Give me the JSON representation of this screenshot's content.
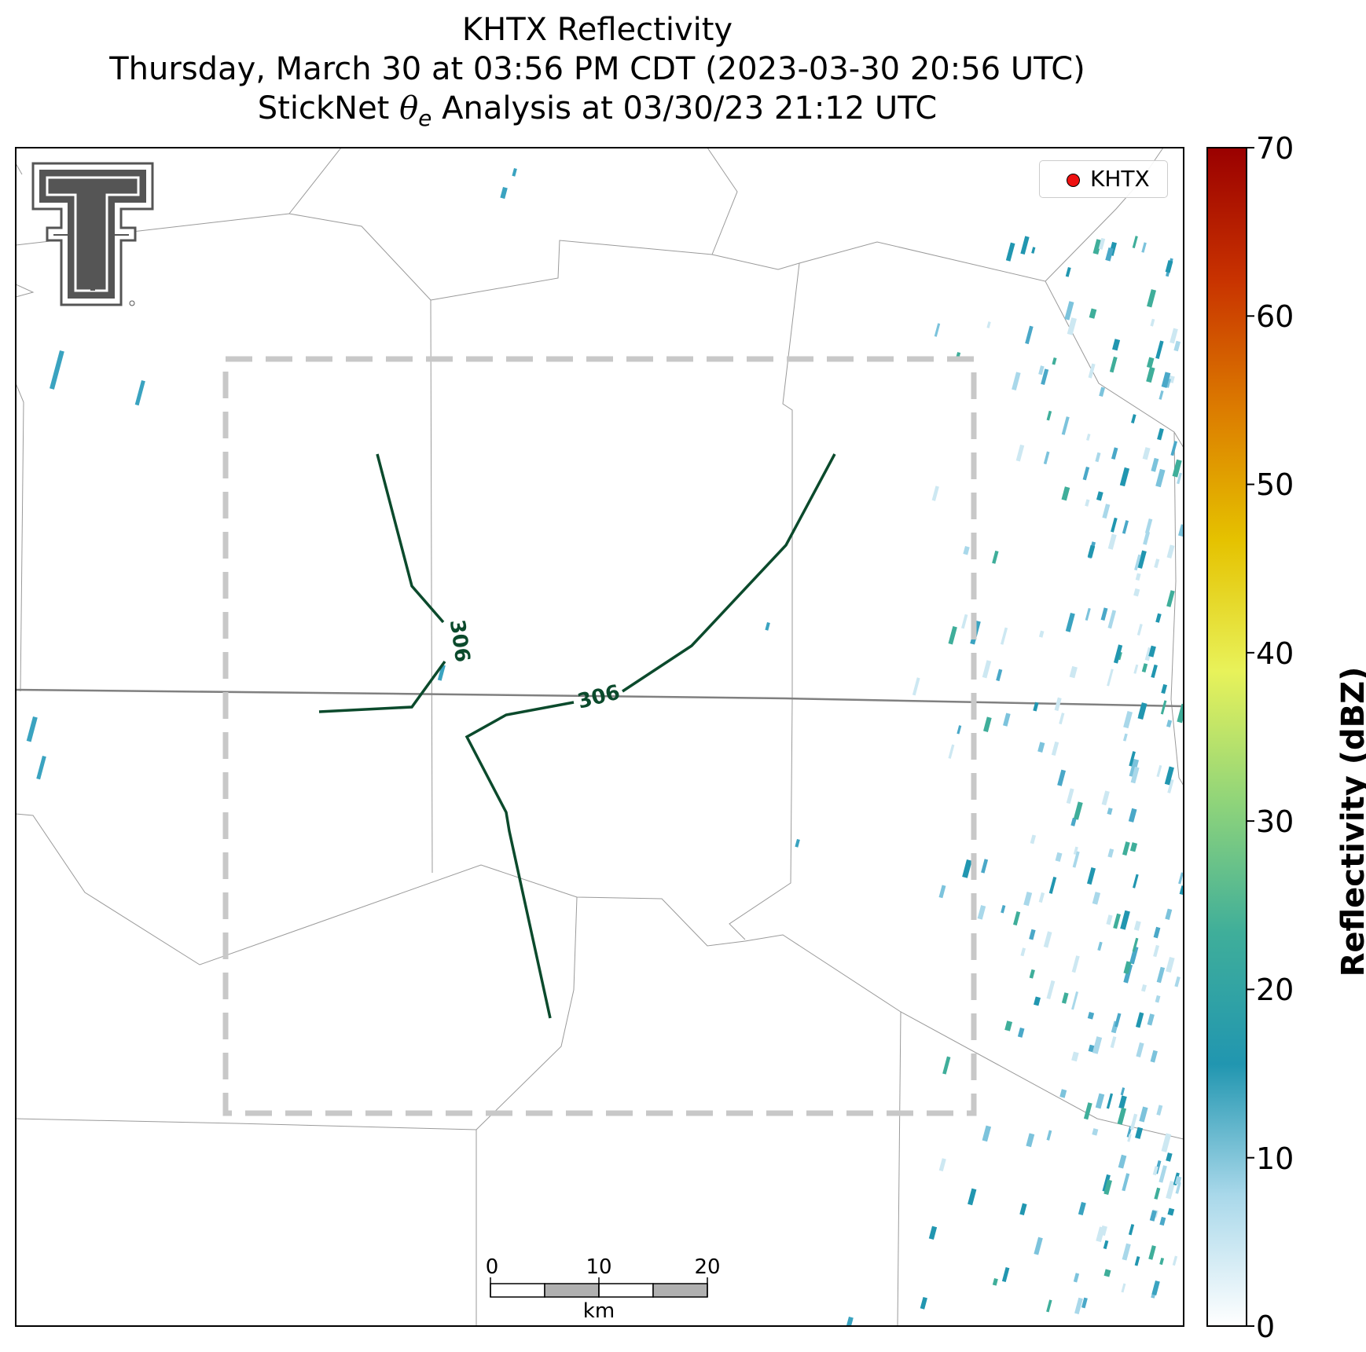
{
  "title": {
    "line1": "KHTX Reflectivity",
    "line2": "Thursday, March 30 at 03:56 PM CDT (2023-03-30 20:56 UTC)",
    "line3_prefix": "StickNet ",
    "line3_theta": "θ",
    "line3_sub": "e",
    "line3_suffix": " Analysis at 03/30/23 21:12 UTC"
  },
  "legend": {
    "label": "KHTX",
    "marker_color": "#ee1111"
  },
  "colorbar": {
    "label": "Reflectivity (dBZ)",
    "min": 0,
    "max": 70,
    "ticks": [
      "70",
      "60",
      "50",
      "40",
      "30",
      "20",
      "10",
      "0"
    ],
    "colors": [
      "#ffffff",
      "#a9d8ea",
      "#2196b0",
      "#3fae9a",
      "#8fd47a",
      "#e8f25a",
      "#e5c200",
      "#dc7c00",
      "#c83200",
      "#9a0000"
    ]
  },
  "contours": [
    {
      "value": "306",
      "color": "#0b4a2c"
    }
  ],
  "scale_bar": {
    "unit": "km",
    "ticks": [
      "0",
      "10",
      "20"
    ]
  },
  "logo": {
    "text": "TT",
    "color": "#555555"
  },
  "analysis_box": {
    "color": "#c8c8c8"
  }
}
